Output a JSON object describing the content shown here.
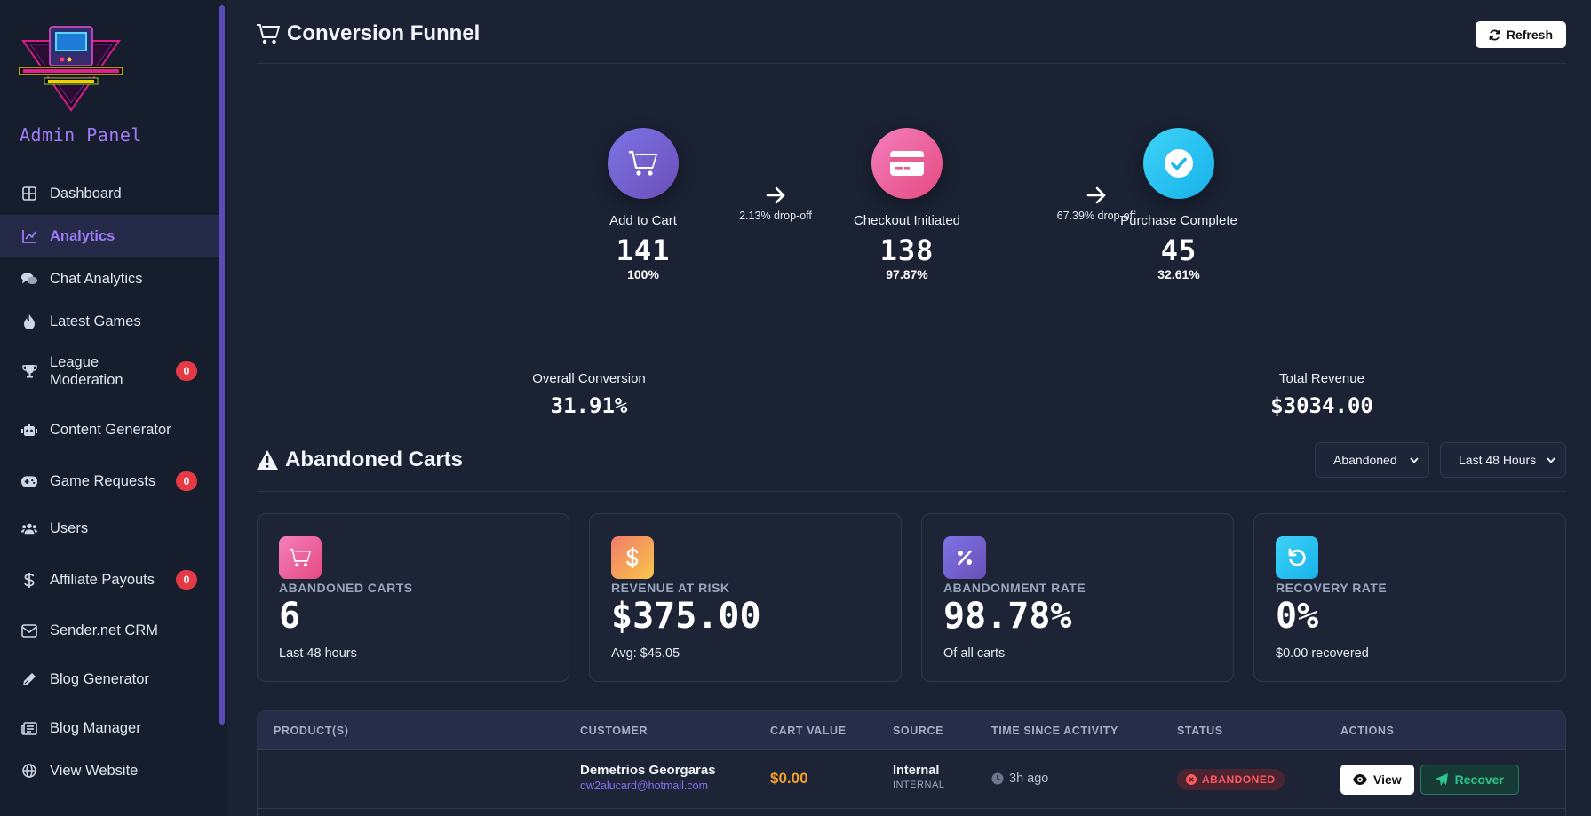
{
  "sidebar": {
    "brand_title": "Admin Panel",
    "items": [
      {
        "label": "Dashboard",
        "icon": "grid-icon"
      },
      {
        "label": "Analytics",
        "icon": "chart-line-icon",
        "active": true
      },
      {
        "label": "Chat Analytics",
        "icon": "chat-bubbles-icon"
      },
      {
        "label": "Latest Games",
        "icon": "fire-icon"
      },
      {
        "label": "League Moderation",
        "icon": "trophy-icon",
        "badge": "0"
      },
      {
        "label": "Content Generator",
        "icon": "robot-icon"
      },
      {
        "label": "Game Requests",
        "icon": "gamepad-icon",
        "badge": "0"
      },
      {
        "label": "Users",
        "icon": "users-icon"
      },
      {
        "label": "Affiliate Payouts",
        "icon": "dollar-icon",
        "badge": "0"
      },
      {
        "label": "Sender.net CRM",
        "icon": "envelope-icon"
      },
      {
        "label": "Blog Generator",
        "icon": "pen-icon"
      },
      {
        "label": "Blog Manager",
        "icon": "newspaper-icon"
      },
      {
        "label": "View Website",
        "icon": "globe-icon"
      }
    ]
  },
  "funnel": {
    "title": "Conversion Funnel",
    "refresh_label": "Refresh",
    "steps": [
      {
        "label": "Add to Cart",
        "count": "141",
        "pct": "100%"
      },
      {
        "label": "Checkout Initiated",
        "count": "138",
        "pct": "97.87%"
      },
      {
        "label": "Purchase Complete",
        "count": "45",
        "pct": "32.61%"
      }
    ],
    "dropoffs": [
      "2.13% drop-off",
      "67.39% drop-off"
    ],
    "overall_label": "Overall Conversion",
    "overall_value": "31.91%",
    "revenue_label": "Total Revenue",
    "revenue_value": "$3034.00"
  },
  "abandoned": {
    "title": "Abandoned Carts",
    "status_filter": "Abandoned",
    "time_filter": "Last 48 Hours",
    "stats": [
      {
        "label": "ABANDONED CARTS",
        "value": "6",
        "sub": "Last 48 hours",
        "icon": "cart-icon"
      },
      {
        "label": "REVENUE AT RISK",
        "value": "$375.00",
        "sub": "Avg: $45.05",
        "icon": "dollar-icon"
      },
      {
        "label": "ABANDONMENT RATE",
        "value": "98.78%",
        "sub": "Of all carts",
        "icon": "percent-icon"
      },
      {
        "label": "RECOVERY RATE",
        "value": "0%",
        "sub": "$0.00 recovered",
        "icon": "undo-icon"
      }
    ],
    "table": {
      "headers": [
        "PRODUCT(S)",
        "CUSTOMER",
        "CART VALUE",
        "SOURCE",
        "TIME SINCE ACTIVITY",
        "STATUS",
        "ACTIONS"
      ],
      "rows": [
        {
          "products": "",
          "customer_name": "Demetrios Georgaras",
          "customer_email": "dw2alucard@hotmail.com",
          "cart_value": "$0.00",
          "source": "Internal",
          "source_sub": "INTERNAL",
          "time": "3h ago",
          "status": "ABANDONED",
          "view_label": "View",
          "recover_label": "Recover"
        }
      ]
    }
  },
  "colors": {
    "accent": "#9d7cf5",
    "badge": "#e53945",
    "cart_value": "#f59e2e",
    "recover": "#2fc48f"
  }
}
